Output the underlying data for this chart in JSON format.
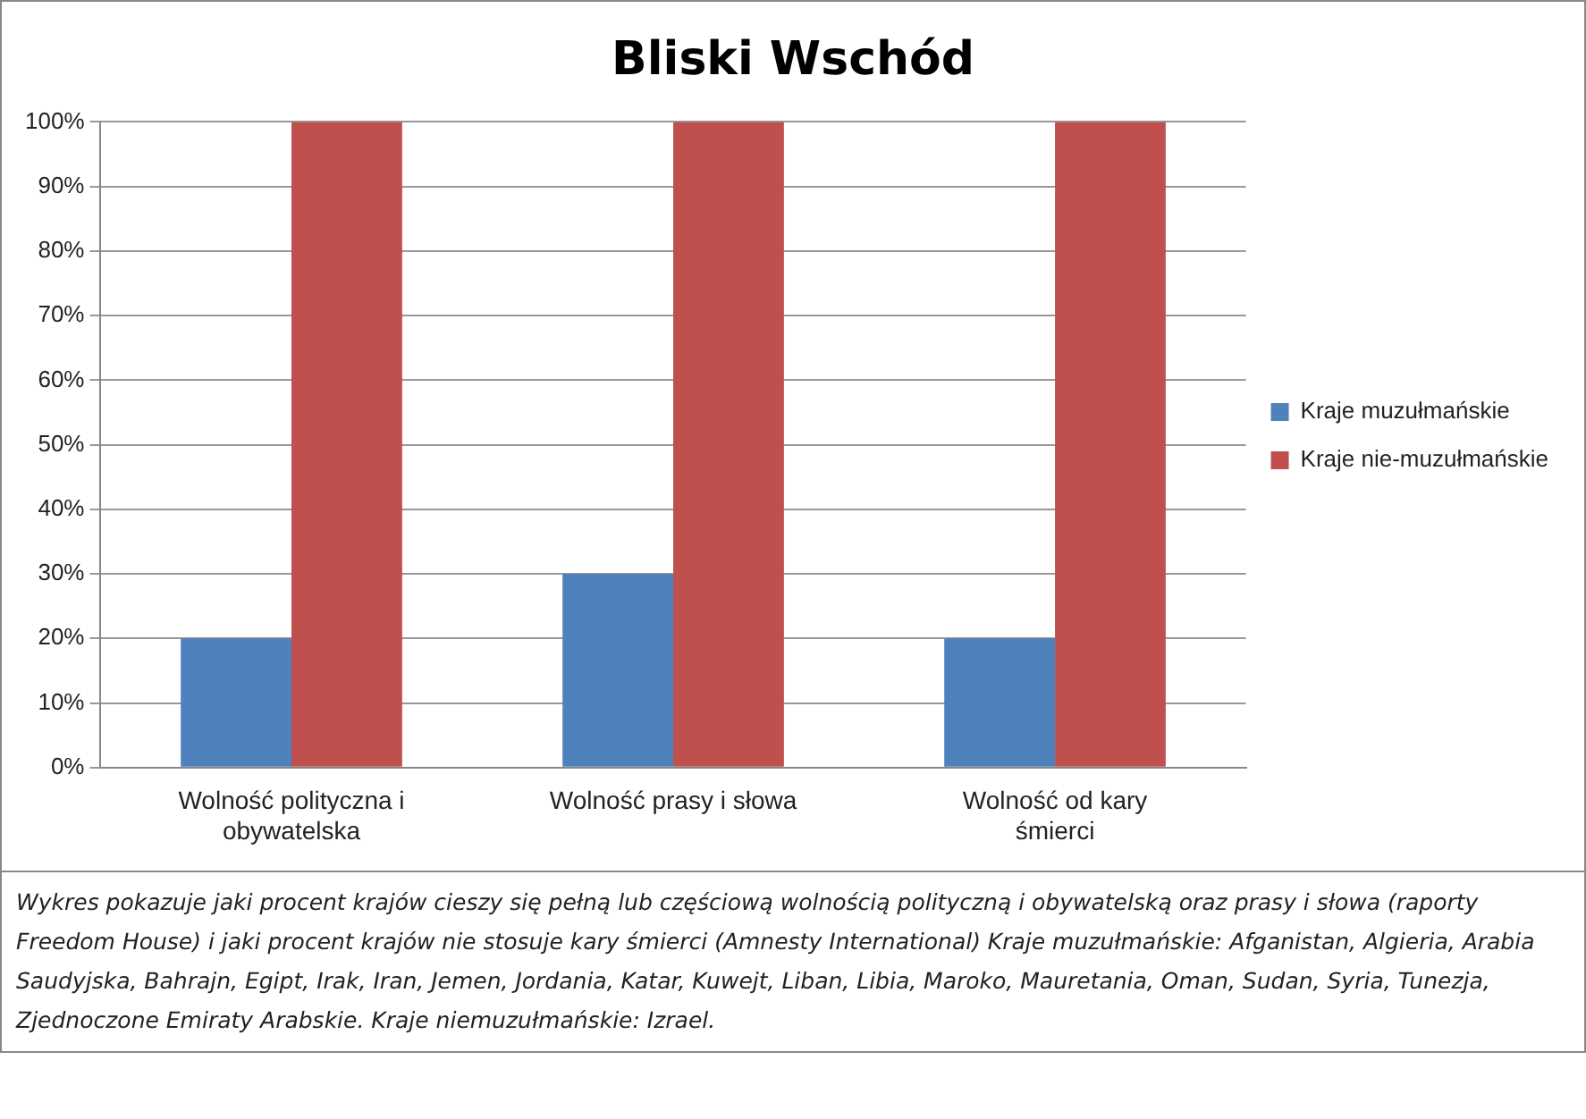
{
  "chart_data": {
    "type": "bar",
    "title": "Bliski Wschód",
    "categories": [
      "Wolność polityczna i obywatelska",
      "Wolność prasy i słowa",
      "Wolność od kary śmierci"
    ],
    "series": [
      {
        "name": "Kraje muzułmańskie",
        "color": "#4f81bd",
        "values": [
          20,
          30,
          20
        ]
      },
      {
        "name": "Kraje nie-muzułmańskie",
        "color": "#c0504d",
        "values": [
          100,
          100,
          100
        ]
      }
    ],
    "ylim": [
      0,
      100
    ],
    "yticks": [
      {
        "value": 0,
        "label": "0%"
      },
      {
        "value": 10,
        "label": "10%"
      },
      {
        "value": 20,
        "label": "20%"
      },
      {
        "value": 30,
        "label": "30%"
      },
      {
        "value": 40,
        "label": "40%"
      },
      {
        "value": 50,
        "label": "50%"
      },
      {
        "value": 60,
        "label": "60%"
      },
      {
        "value": 70,
        "label": "70%"
      },
      {
        "value": 80,
        "label": "80%"
      },
      {
        "value": 90,
        "label": "90%"
      },
      {
        "value": 100,
        "label": "100%"
      }
    ],
    "grid": "y",
    "legend": "right",
    "annotations": [
      "Wykres pokazuje jaki procent krajów cieszy się pełną lub częściową wolnością polityczną i obywatelską oraz prasy i słowa (raporty Freedom House) i jaki procent krajów nie stosuje kary śmierci (Amnesty International) Kraje muzułmańskie: Afganistan, Algieria, Arabia Saudyjska, Bahrajn, Egipt, Irak, Iran, Jemen, Jordania, Katar, Kuwejt, Liban, Libia, Maroko, Mauretania, Oman, Sudan, Syria, Tunezja, Zjednoczone Emiraty Arabskie. Kraje niemuzułmańskie: Izrael."
    ]
  }
}
